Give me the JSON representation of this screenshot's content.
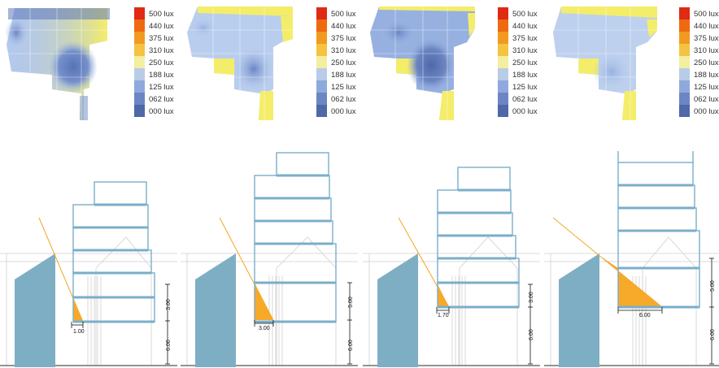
{
  "legend": {
    "labels": [
      "500 lux",
      "440 lux",
      "375 lux",
      "310 lux",
      "250 lux",
      "188 lux",
      "125 lux",
      "062 lux",
      "000 lux"
    ],
    "colors": [
      "#e02a14",
      "#ee6a10",
      "#f29a20",
      "#f5c342",
      "#f3eea0",
      "#b8cce8",
      "#8fa9dc",
      "#6c86c4",
      "#4f68a8"
    ]
  },
  "colors": {
    "building": "#7eaec4",
    "frame": "#7aaec9",
    "sky_line": "#f5a623",
    "wedge": "#f7a92a",
    "ghost": "#cfcfcf",
    "ground": "#555555",
    "map_cool": "#8aa6dc",
    "map_mid": "#b9cdee",
    "map_warm": "#f3ec6c",
    "map_dark": "#5f78b8"
  },
  "scenarios": [
    {
      "id": "A",
      "offset_label": "1.00",
      "dim_upper": "3.00",
      "dim_lower": "6.00"
    },
    {
      "id": "B",
      "offset_label": "3.00",
      "dim_upper": "5.00",
      "dim_lower": "6.00"
    },
    {
      "id": "C",
      "offset_label": "1.70",
      "dim_upper": "3.00",
      "dim_lower": "6.00"
    },
    {
      "id": "D",
      "offset_label": "6.00",
      "dim_upper": "5.00",
      "dim_lower": "6.00"
    }
  ]
}
